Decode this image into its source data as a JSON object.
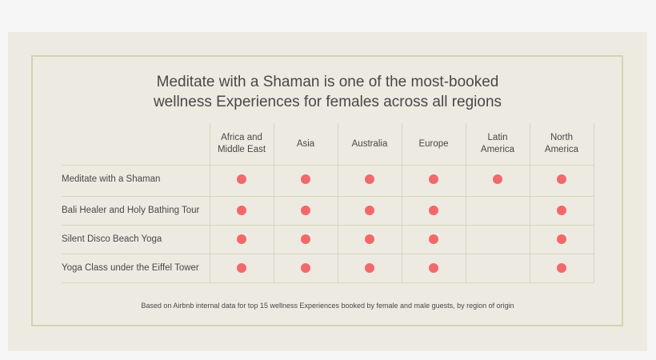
{
  "chart_data": {
    "type": "table",
    "title": "Meditate with a Shaman is one of the most-booked\nwellness Experiences for females across all regions",
    "columns": [
      "Africa and\nMiddle East",
      "Asia",
      "Australia",
      "Europe",
      "Latin\nAmerica",
      "North\nAmerica"
    ],
    "rows": [
      {
        "label": "Meditate with a Shaman",
        "values": [
          true,
          true,
          true,
          true,
          true,
          true
        ]
      },
      {
        "label": "Bali Healer and Holy Bathing Tour",
        "values": [
          true,
          true,
          true,
          true,
          false,
          true
        ]
      },
      {
        "label": "Silent Disco Beach Yoga",
        "values": [
          true,
          true,
          true,
          true,
          false,
          true
        ]
      },
      {
        "label": "Yoga Class under the Eiffel Tower",
        "values": [
          true,
          true,
          true,
          true,
          false,
          true
        ]
      }
    ],
    "footnote": "Based on Airbnb internal data for top 15 wellness Experiences booked by female and male guests, by region of origin",
    "marker_color": "#f2686b"
  }
}
